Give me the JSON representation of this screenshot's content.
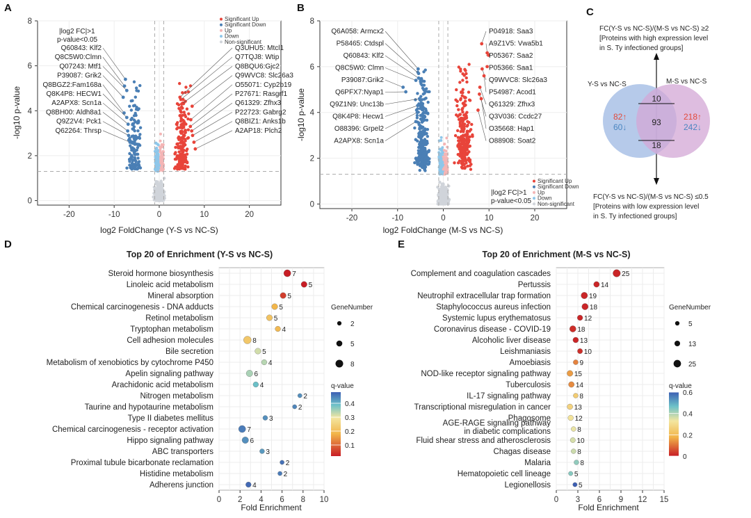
{
  "colors": {
    "sig_up": "#e8443a",
    "sig_down": "#4a7fb5",
    "up": "#f4b5b5",
    "down": "#8fc7ea",
    "nonsig": "#d0d4da",
    "venn_left": "#a9c1e6",
    "venn_right": "#d3a7d6",
    "up_text": "#e24a3b",
    "down_text": "#4b86c1"
  },
  "panels": {
    "A": "A",
    "B": "B",
    "C": "C",
    "D": "D",
    "E": "E"
  },
  "chart_data": [
    {
      "id": "A",
      "type": "scatter",
      "subtype": "volcano",
      "xlabel": "log2 FoldChange (Y-S vs NC-S)",
      "ylabel": "-log10 p-value",
      "xlim": [
        -27,
        27
      ],
      "ylim": [
        -0.2,
        8
      ],
      "xticks": [
        -20,
        -10,
        0,
        10,
        20
      ],
      "yticks": [
        0,
        2,
        4,
        6,
        8
      ],
      "thresholds": {
        "fc": 1,
        "p_line": 1.3
      },
      "annotation": [
        "|log2 FC|>1",
        "p-value<0.05"
      ],
      "legend": [
        "Significant Up",
        "Significant Down",
        "Up",
        "Down",
        "Non-significant"
      ],
      "left_labels": [
        {
          "text": "Q60843: Klf2",
          "x": -7.5,
          "y": 5.4
        },
        {
          "text": "Q8C5W0:Clmn",
          "x": -7.7,
          "y": 5.1
        },
        {
          "text": "Q07243: Mtf1",
          "x": -7.2,
          "y": 4.9
        },
        {
          "text": "P39087: Grik2",
          "x": -8.0,
          "y": 4.6
        },
        {
          "text": "Q8BGZ2:Fam168a",
          "x": -7.8,
          "y": 3.9
        },
        {
          "text": "Q8K4P8: HECW1",
          "x": -7.2,
          "y": 3.7
        },
        {
          "text": "A2APX8: Scn1a",
          "x": -6.9,
          "y": 3.4
        },
        {
          "text": "Q8BH00: Aldh8a1",
          "x": -7.0,
          "y": 3.1
        },
        {
          "text": "Q9Z2V4: Pck1",
          "x": -6.8,
          "y": 2.9
        },
        {
          "text": "Q62264: Thrsp",
          "x": -6.5,
          "y": 2.6
        }
      ],
      "right_labels": [
        {
          "text": "Q3UHU5: Mtcl1",
          "x": 4.6,
          "y": 4.6
        },
        {
          "text": "Q7TQJ8: Wtip",
          "x": 4.8,
          "y": 4.5
        },
        {
          "text": "Q8BQU6:Gjc2",
          "x": 5.0,
          "y": 4.3
        },
        {
          "text": "Q9WVC8: Slc26a3",
          "x": 7.3,
          "y": 4.2
        },
        {
          "text": "O55071: Cyp2b19",
          "x": 7.0,
          "y": 3.6
        },
        {
          "text": "P27671: Rasgrf1",
          "x": 6.9,
          "y": 3.3
        },
        {
          "text": "Q61329: Zfhx3",
          "x": 7.2,
          "y": 3.1
        },
        {
          "text": "P22723: Gabrg2",
          "x": 7.4,
          "y": 2.9
        },
        {
          "text": "Q8BIZ1: Anks1b",
          "x": 7.7,
          "y": 2.6
        },
        {
          "text": "A2AP18: Plch2",
          "x": 8.0,
          "y": 2.3
        }
      ]
    },
    {
      "id": "B",
      "type": "scatter",
      "subtype": "volcano",
      "xlabel": "log2 FoldChange (M-S vs NC-S)",
      "ylabel": "-log10 p-value",
      "xlim": [
        -27,
        27
      ],
      "ylim": [
        -0.2,
        8
      ],
      "xticks": [
        -20,
        -10,
        0,
        10,
        20
      ],
      "yticks": [
        0,
        2,
        4,
        6,
        8
      ],
      "thresholds": {
        "fc": 1,
        "p_line": 1.3
      },
      "annotation": [
        "|log2 FC|>1",
        "p-value<0.05"
      ],
      "legend": [
        "Significant Up",
        "Significant Down",
        "Up",
        "Down",
        "Non-significant"
      ],
      "left_labels": [
        {
          "text": "Q6A058: Armcx2",
          "x": -5.5,
          "y": 5.9
        },
        {
          "text": "P58465: Ctdspl",
          "x": -5.4,
          "y": 5.7
        },
        {
          "text": "Q60843: Klf2",
          "x": -5.4,
          "y": 5.5
        },
        {
          "text": "Q8C5W0: Clmn",
          "x": -6.0,
          "y": 5.4
        },
        {
          "text": "P39087:Grik2",
          "x": -8.8,
          "y": 5.1
        },
        {
          "text": "Q6PFX7:Nyap1",
          "x": -8.2,
          "y": 4.9
        },
        {
          "text": "Q9Z1N9: Unc13b",
          "x": -5.2,
          "y": 4.6
        },
        {
          "text": "Q8K4P8: Hecw1",
          "x": -5.6,
          "y": 4.3
        },
        {
          "text": "O88396: Grpel2",
          "x": -5.7,
          "y": 4.0
        },
        {
          "text": "A2APX8: Scn1a",
          "x": -6.0,
          "y": 3.6
        }
      ],
      "right_labels": [
        {
          "text": "P04918: Saa3",
          "x": 8.4,
          "y": 7.0
        },
        {
          "text": "A9Z1V5: Vwa5b1",
          "x": 9.6,
          "y": 6.6
        },
        {
          "text": "P05367: Saa2",
          "x": 9.9,
          "y": 6.5
        },
        {
          "text": "P05366: Saa1",
          "x": 9.6,
          "y": 6.0
        },
        {
          "text": "Q9WVC8: Slc26a3",
          "x": 8.5,
          "y": 5.9
        },
        {
          "text": "P54987: Acod1",
          "x": 8.9,
          "y": 5.6
        },
        {
          "text": "Q61329: Zfhx3",
          "x": 8.0,
          "y": 5.1
        },
        {
          "text": "Q3V036: Ccdc27",
          "x": 7.9,
          "y": 4.8
        },
        {
          "text": "O35668: Hap1",
          "x": 8.3,
          "y": 4.6
        },
        {
          "text": "O88908: Soat2",
          "x": 7.6,
          "y": 4.1
        }
      ]
    },
    {
      "id": "C",
      "type": "venn",
      "left_set": "Y-S vs NC-S",
      "right_set": "M-S vs NC-S",
      "left_up": "82↑",
      "left_down": "60↓",
      "right_up": "218↑",
      "right_down": "242↓",
      "overlap_top": "10",
      "overlap_mid": "93",
      "overlap_bottom": "18",
      "top_note": [
        "FC(Y-S vs NC-S)/(M-S vs NC-S) ≥2",
        "[Proteins with high expression level",
        "in S. Ty infectioned groups]"
      ],
      "bottom_note": [
        "FC(Y-S vs NC-S)/(M-S vs NC-S) ≤0.5",
        "[Proteins with low expression level",
        "in S. Ty infectioned groups]"
      ]
    },
    {
      "id": "D",
      "type": "scatter",
      "subtype": "enrichment-dot",
      "title": "Top 20 of  Enrichment (Y-S vs NC-S)",
      "xlabel": "Fold Enrichment",
      "xlim": [
        0,
        10
      ],
      "xticks": [
        0,
        2,
        4,
        6,
        8,
        10
      ],
      "size_legend_title": "GeneNumber",
      "size_legend": [
        2,
        5,
        8
      ],
      "color_legend_title": "q-value",
      "color_legend_ticks": [
        0.1,
        0.2,
        0.3,
        0.4
      ],
      "color_range": [
        0.02,
        0.48
      ],
      "categories": [
        "Steroid hormone biosynthesis",
        "Linoleic acid metabolism",
        "Mineral absorption",
        "Chemical carcinogenesis - DNA adducts",
        "Retinol metabolism",
        "Tryptophan metabolism",
        "Cell adhesion molecules",
        "Bile secretion",
        "Metabolism of xenobiotics by cytochrome P450",
        "Apelin signaling pathway",
        "Arachidonic acid metabolism",
        "Nitrogen metabolism",
        "Taurine and hypotaurine metabolism",
        "Type II diabetes mellitus",
        "Chemical carcinogenesis - receptor activation",
        "Hippo signaling pathway",
        "ABC transporters",
        "Proximal tubule bicarbonate reclamation",
        "Histidine metabolism",
        "Adherens junction"
      ],
      "fold_enrichment": [
        6.5,
        8.1,
        6.1,
        5.3,
        4.8,
        5.6,
        2.7,
        3.7,
        4.3,
        2.9,
        3.5,
        7.7,
        7.2,
        4.4,
        2.2,
        2.5,
        4.1,
        6.0,
        5.8,
        2.8
      ],
      "gene_number": [
        7,
        5,
        5,
        5,
        5,
        4,
        8,
        5,
        4,
        6,
        4,
        2,
        2,
        3,
        7,
        6,
        3,
        2,
        2,
        4
      ],
      "q_value": [
        0.02,
        0.02,
        0.05,
        0.16,
        0.19,
        0.17,
        0.2,
        0.3,
        0.32,
        0.33,
        0.38,
        0.43,
        0.44,
        0.43,
        0.45,
        0.43,
        0.42,
        0.46,
        0.45,
        0.47
      ]
    },
    {
      "id": "E",
      "type": "scatter",
      "subtype": "enrichment-dot",
      "title": "Top 20 of  Enrichment (M-S vs NC-S)",
      "xlabel": "Fold Enrichment",
      "xlim": [
        0,
        15
      ],
      "xticks": [
        0,
        3,
        6,
        9,
        12,
        15
      ],
      "size_legend_title": "GeneNumber",
      "size_legend": [
        5,
        13,
        25
      ],
      "color_legend_title": "q-value",
      "color_legend_ticks": [
        0,
        0.2,
        0.4,
        0.6
      ],
      "color_range": [
        0,
        0.6
      ],
      "categories": [
        "Complement and coagulation cascades",
        "Pertussis",
        "Neutrophil extracellular trap formation",
        "Staphylococcus aureus infection",
        "Systemic lupus erythematosus",
        "Coronavirus disease - COVID-19",
        "Alcoholic liver disease",
        "Leishmaniasis",
        "Amoebiasis",
        "NOD-like receptor signaling pathway",
        "Tuberculosis",
        "IL-17 signaling pathway",
        "Transcriptional misregulation in cancer",
        "Phagosome",
        "AGE-RAGE signaling pathway in diabetic complications",
        "Fluid shear stress and atherosclerosis",
        "Chagas disease",
        "Malaria",
        "Hematopoietic cell lineage",
        "Legionellosis"
      ],
      "fold_enrichment": [
        8.4,
        5.6,
        3.9,
        4.0,
        3.3,
        2.3,
        2.7,
        3.3,
        2.7,
        1.9,
        2.1,
        2.7,
        1.9,
        2.0,
        2.4,
        2.3,
        2.4,
        2.8,
        2.0,
        2.6
      ],
      "gene_number": [
        25,
        14,
        19,
        18,
        12,
        18,
        13,
        10,
        9,
        15,
        14,
        8,
        13,
        12,
        8,
        10,
        8,
        8,
        5,
        5
      ],
      "q_value": [
        0.01,
        0.01,
        0.01,
        0.01,
        0.01,
        0.02,
        0.01,
        0.02,
        0.12,
        0.15,
        0.13,
        0.25,
        0.27,
        0.32,
        0.34,
        0.36,
        0.37,
        0.43,
        0.44,
        0.6
      ]
    }
  ]
}
